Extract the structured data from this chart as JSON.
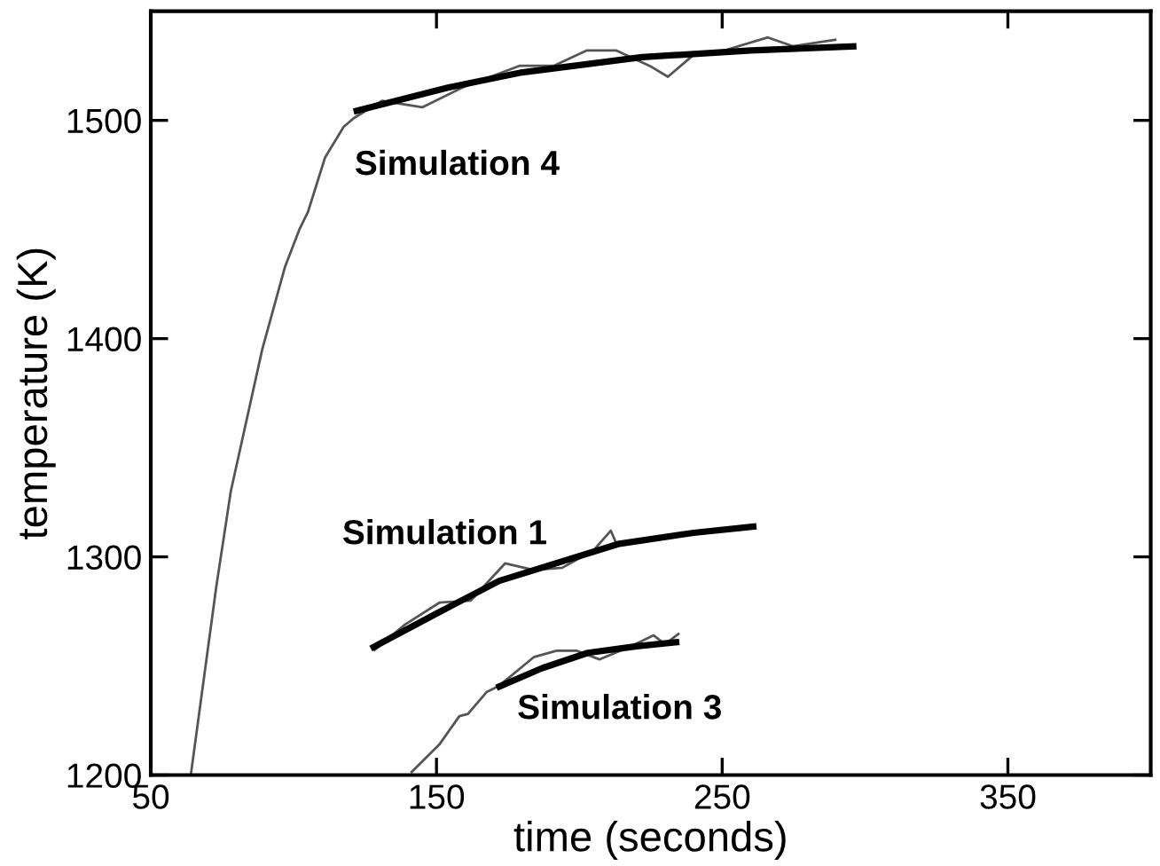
{
  "chart_data": {
    "type": "line",
    "xlabel": "time (seconds)",
    "ylabel": "temperature (K)",
    "xlim": [
      50,
      400
    ],
    "xticks": [
      50,
      150,
      250,
      350
    ],
    "ylim": [
      1200,
      1550
    ],
    "yticks": [
      1200,
      1300,
      1400,
      1500
    ],
    "grid": false,
    "marker": "none",
    "line_style": "solid",
    "series": [
      {
        "color": "#555555",
        "x": [
          64,
          73,
          78,
          89,
          97,
          102,
          105,
          111,
          117.5,
          121,
          131,
          145,
          159,
          179,
          191,
          202.5,
          213,
          224.6,
          231,
          240,
          250.6,
          266,
          274.7,
          290
        ],
        "values": [
          1200,
          1287,
          1330,
          1395,
          1433,
          1450,
          1458,
          1483,
          1497,
          1501,
          1509,
          1506,
          1515,
          1525,
          1525,
          1532,
          1532,
          1525,
          1520,
          1530,
          1532,
          1538,
          1534,
          1537
        ]
      },
      {
        "name": "Simulation 4",
        "color": "#000000",
        "x": [
          121,
          154,
          180,
          222,
          260,
          297
        ],
        "values": [
          1504,
          1515,
          1522,
          1529,
          1532,
          1534
        ]
      },
      {
        "color": "#555555",
        "x": [
          128,
          139,
          151,
          162,
          174,
          184,
          194,
          205,
          211,
          213
        ],
        "values": [
          1257,
          1269,
          1279,
          1280,
          1297,
          1294,
          1295,
          1303,
          1312,
          1306
        ]
      },
      {
        "name": "Simulation 1",
        "color": "#000000",
        "x": [
          127,
          150,
          172,
          214,
          240,
          262
        ],
        "values": [
          1258,
          1274,
          1289,
          1306,
          1311,
          1314
        ]
      },
      {
        "color": "#555555",
        "x": [
          141,
          151,
          158,
          161,
          167.5,
          172,
          184,
          192,
          199,
          207,
          218,
          226,
          230,
          235
        ],
        "values": [
          1201,
          1214,
          1227,
          1228,
          1238,
          1241,
          1254,
          1257,
          1257,
          1253,
          1259,
          1264,
          1260,
          1265
        ]
      },
      {
        "name": "Simulation 3",
        "color": "#000000",
        "x": [
          171,
          187,
          203,
          220,
          235
        ],
        "values": [
          1240,
          1249,
          1256,
          1259,
          1261
        ]
      }
    ]
  }
}
